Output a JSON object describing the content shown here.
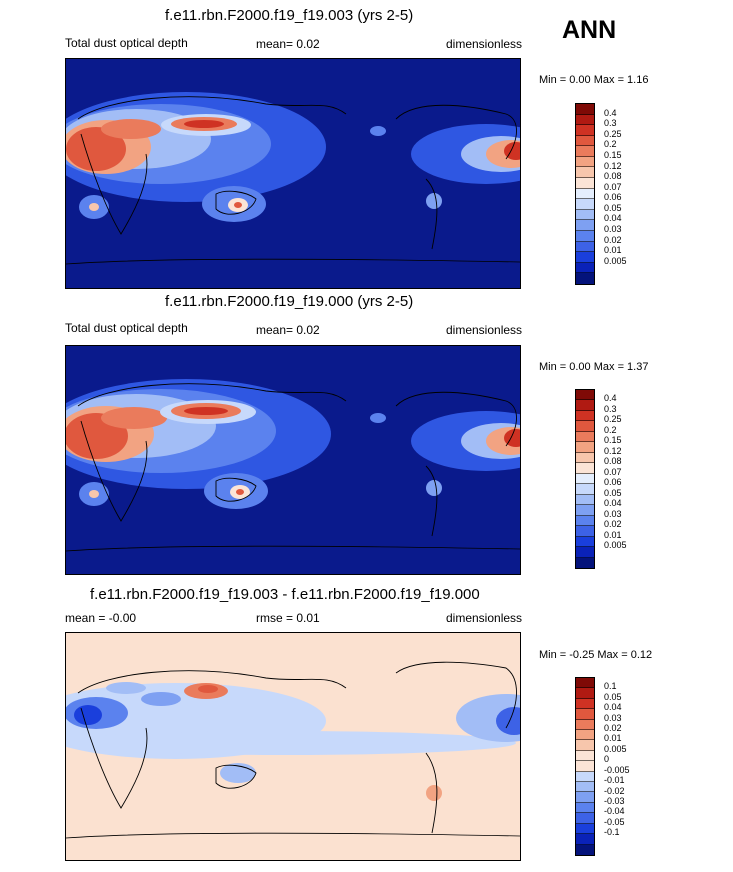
{
  "season": "ANN",
  "colors": {
    "ocean_bg": "#0a1a8c",
    "diff_bg": "#fbe1d0",
    "scale_abs": [
      "#04137b",
      "#0a22b8",
      "#1a3fdc",
      "#3d62e6",
      "#5b82ee",
      "#7ea0f2",
      "#a2bdf6",
      "#c7d9fb",
      "#e4eefd",
      "#fbe4d6",
      "#f7c6ac",
      "#f2a382",
      "#ea7b5c",
      "#e0583e",
      "#cf3223",
      "#b01a12",
      "#7f0a06"
    ],
    "scale_diff": [
      "#04137b",
      "#0a22b8",
      "#1a3fdc",
      "#3d62e6",
      "#5b82ee",
      "#7ea0f2",
      "#a2bdf6",
      "#c7d9fb",
      "#fbe4d6",
      "#fbe4d6",
      "#f7c6ac",
      "#f2a382",
      "#ea7b5c",
      "#e0583e",
      "#cf3223",
      "#b01a12",
      "#7f0a06"
    ]
  },
  "panels": [
    {
      "title": "f.e11.rbn.F2000.f19_f19.003 (yrs 2-5)",
      "left_label": "Total dust optical depth",
      "center_label": "mean=   0.02",
      "right_label": "dimensionless",
      "min_max": "Min =   0.00 Max =   1.16",
      "colorbar_labels": [
        "0.4",
        "0.3",
        "0.25",
        "0.2",
        "0.15",
        "0.12",
        "0.08",
        "0.07",
        "0.06",
        "0.05",
        "0.04",
        "0.03",
        "0.02",
        "0.01",
        "0.005"
      ],
      "map_type": "abs"
    },
    {
      "title": "f.e11.rbn.F2000.f19_f19.000 (yrs 2-5)",
      "left_label": "Total dust optical depth",
      "center_label": "mean=   0.02",
      "right_label": "dimensionless",
      "min_max": "Min =   0.00 Max =   1.37",
      "colorbar_labels": [
        "0.4",
        "0.3",
        "0.25",
        "0.2",
        "0.15",
        "0.12",
        "0.08",
        "0.07",
        "0.06",
        "0.05",
        "0.04",
        "0.03",
        "0.02",
        "0.01",
        "0.005"
      ],
      "map_type": "abs"
    },
    {
      "title": "f.e11.rbn.F2000.f19_f19.003 - f.e11.rbn.F2000.f19_f19.000",
      "left_label": "mean =  -0.00",
      "center_label": "rmse =   0.01",
      "right_label": "dimensionless",
      "min_max": "Min =  -0.25 Max =   0.12",
      "colorbar_labels": [
        "0.1",
        "0.05",
        "0.04",
        "0.03",
        "0.02",
        "0.01",
        "0.005",
        "0",
        "-0.005",
        "-0.01",
        "-0.02",
        "-0.03",
        "-0.04",
        "-0.05",
        "-0.1"
      ],
      "map_type": "diff"
    }
  ]
}
